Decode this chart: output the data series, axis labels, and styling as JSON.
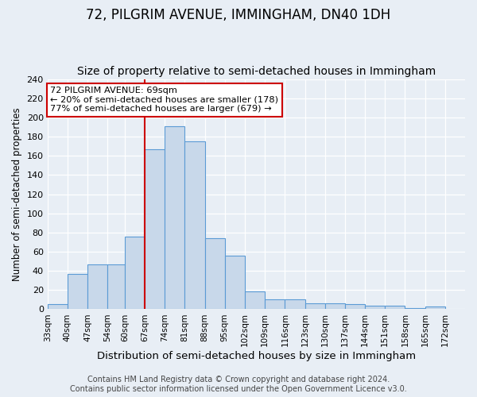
{
  "title": "72, PILGRIM AVENUE, IMMINGHAM, DN40 1DH",
  "subtitle": "Size of property relative to semi-detached houses in Immingham",
  "xlabel": "Distribution of semi-detached houses by size in Immingham",
  "ylabel": "Number of semi-detached properties",
  "bin_labels": [
    "33sqm",
    "40sqm",
    "47sqm",
    "54sqm",
    "60sqm",
    "67sqm",
    "74sqm",
    "81sqm",
    "88sqm",
    "95sqm",
    "102sqm",
    "109sqm",
    "116sqm",
    "123sqm",
    "130sqm",
    "137sqm",
    "144sqm",
    "151sqm",
    "158sqm",
    "165sqm",
    "172sqm"
  ],
  "bar_values": [
    5,
    37,
    47,
    47,
    76,
    167,
    191,
    175,
    74,
    56,
    19,
    10,
    10,
    6,
    6,
    5,
    4,
    4,
    1,
    3,
    0
  ],
  "bin_edges": [
    33,
    40,
    47,
    54,
    60,
    67,
    74,
    81,
    88,
    95,
    102,
    109,
    116,
    123,
    130,
    137,
    144,
    151,
    158,
    165,
    172
  ],
  "bar_color": "#c8d8ea",
  "bar_edge_color": "#5b9bd5",
  "property_line_x": 67,
  "property_line_color": "#cc0000",
  "annotation_title": "72 PILGRIM AVENUE: 69sqm",
  "annotation_line1": "← 20% of semi-detached houses are smaller (178)",
  "annotation_line2": "77% of semi-detached houses are larger (679) →",
  "annotation_box_color": "#ffffff",
  "annotation_box_edge_color": "#cc0000",
  "ylim": [
    0,
    240
  ],
  "yticks": [
    0,
    20,
    40,
    60,
    80,
    100,
    120,
    140,
    160,
    180,
    200,
    220,
    240
  ],
  "footer_line1": "Contains HM Land Registry data © Crown copyright and database right 2024.",
  "footer_line2": "Contains public sector information licensed under the Open Government Licence v3.0.",
  "title_fontsize": 12,
  "subtitle_fontsize": 10,
  "xlabel_fontsize": 9.5,
  "ylabel_fontsize": 8.5,
  "footer_fontsize": 7,
  "background_color": "#e8eef5",
  "plot_bg_color": "#e8eef5"
}
